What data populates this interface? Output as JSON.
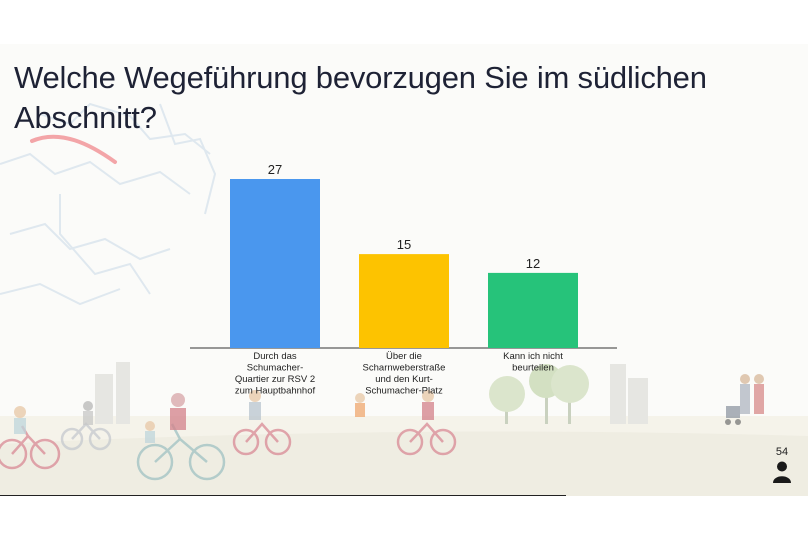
{
  "title": "Welche Wegeführung bevorzugen Sie im südlichen Abschnitt?",
  "participants": "54",
  "icons": {
    "participants": "person-icon"
  },
  "chart_data": {
    "type": "bar",
    "categories": [
      [
        "Durch das",
        "Schumacher-",
        "Quartier zur RSV 2",
        "zum Hauptbahnhof"
      ],
      [
        "Über die",
        "Scharnweberstraße",
        "und den Kurt-",
        "Schumacher-Platz"
      ],
      [
        "Kann ich nicht",
        "beurteilen"
      ]
    ],
    "values": [
      27,
      15,
      12
    ],
    "colors": [
      "#4a97ee",
      "#fdc300",
      "#26c37a"
    ],
    "ylim": [
      0,
      27
    ]
  }
}
